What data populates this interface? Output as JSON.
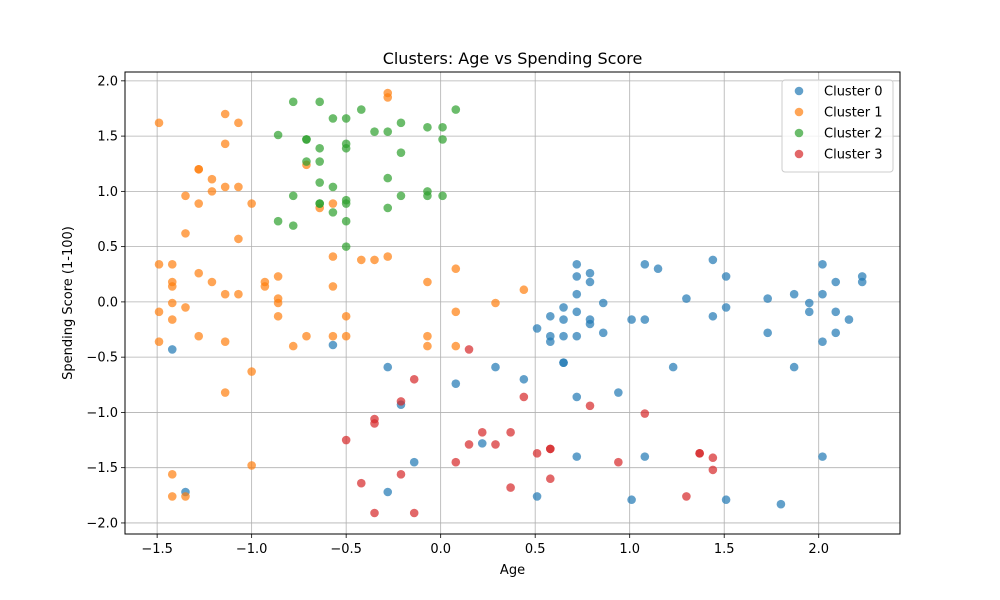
{
  "chart_data": {
    "type": "scatter",
    "title": "Clusters: Age vs Spending Score",
    "xlabel": "Age",
    "ylabel": "Spending Score (1-100)",
    "xlim": [
      -1.67,
      2.43
    ],
    "ylim": [
      -2.1,
      2.08
    ],
    "xticks": [
      -1.5,
      -1.0,
      -0.5,
      0.0,
      0.5,
      1.0,
      1.5,
      2.0
    ],
    "xtick_labels": [
      "−1.5",
      "−1.0",
      "−0.5",
      "0.0",
      "0.5",
      "1.0",
      "1.5",
      "2.0"
    ],
    "yticks": [
      -2.0,
      -1.5,
      -1.0,
      -0.5,
      0.0,
      0.5,
      1.0,
      1.5,
      2.0
    ],
    "ytick_labels": [
      "−2.0",
      "−1.5",
      "−1.0",
      "−0.5",
      "0.0",
      "0.5",
      "1.0",
      "1.5",
      "2.0"
    ],
    "grid": true,
    "legend_position": "top-right",
    "series": [
      {
        "name": "Cluster 0",
        "color": "#1f77b4",
        "points": [
          [
            -1.42,
            -0.43
          ],
          [
            -1.35,
            -1.72
          ],
          [
            -0.57,
            -0.39
          ],
          [
            -0.28,
            -0.59
          ],
          [
            -0.28,
            -1.72
          ],
          [
            -0.21,
            -0.93
          ],
          [
            -0.14,
            -1.45
          ],
          [
            0.08,
            -0.74
          ],
          [
            0.22,
            -1.28
          ],
          [
            0.29,
            -0.59
          ],
          [
            0.44,
            -0.7
          ],
          [
            0.51,
            -0.24
          ],
          [
            0.51,
            -1.76
          ],
          [
            0.58,
            -0.13
          ],
          [
            0.58,
            -0.31
          ],
          [
            0.58,
            -0.36
          ],
          [
            0.65,
            -0.05
          ],
          [
            0.65,
            -0.16
          ],
          [
            0.65,
            -0.31
          ],
          [
            0.65,
            -0.55
          ],
          [
            0.65,
            -0.55
          ],
          [
            0.72,
            0.34
          ],
          [
            0.72,
            0.23
          ],
          [
            0.72,
            0.07
          ],
          [
            0.72,
            -0.09
          ],
          [
            0.72,
            -0.31
          ],
          [
            0.72,
            -0.86
          ],
          [
            0.72,
            -1.4
          ],
          [
            0.79,
            0.26
          ],
          [
            0.79,
            0.18
          ],
          [
            0.79,
            -0.16
          ],
          [
            0.79,
            -0.2
          ],
          [
            0.86,
            -0.01
          ],
          [
            0.86,
            -0.28
          ],
          [
            0.94,
            -0.82
          ],
          [
            1.01,
            -0.16
          ],
          [
            1.01,
            -1.79
          ],
          [
            1.08,
            0.34
          ],
          [
            1.08,
            -0.16
          ],
          [
            1.08,
            -1.4
          ],
          [
            1.15,
            0.3
          ],
          [
            1.23,
            -0.59
          ],
          [
            1.3,
            0.03
          ],
          [
            1.44,
            0.38
          ],
          [
            1.44,
            -0.13
          ],
          [
            1.51,
            0.23
          ],
          [
            1.51,
            -0.05
          ],
          [
            1.51,
            -1.79
          ],
          [
            1.73,
            0.03
          ],
          [
            1.73,
            -0.28
          ],
          [
            1.8,
            -1.83
          ],
          [
            1.87,
            0.07
          ],
          [
            1.87,
            -0.59
          ],
          [
            1.95,
            -0.01
          ],
          [
            1.95,
            -0.09
          ],
          [
            2.02,
            0.34
          ],
          [
            2.02,
            0.07
          ],
          [
            2.02,
            -0.36
          ],
          [
            2.02,
            -1.4
          ],
          [
            2.09,
            0.18
          ],
          [
            2.09,
            -0.09
          ],
          [
            2.09,
            -0.28
          ],
          [
            2.16,
            -0.16
          ],
          [
            2.23,
            0.23
          ],
          [
            2.23,
            0.18
          ]
        ]
      },
      {
        "name": "Cluster 1",
        "color": "#ff7f0e",
        "points": [
          [
            -1.49,
            1.62
          ],
          [
            -1.49,
            0.34
          ],
          [
            -1.49,
            -0.09
          ],
          [
            -1.49,
            -0.36
          ],
          [
            -1.42,
            0.34
          ],
          [
            -1.42,
            0.18
          ],
          [
            -1.42,
            0.14
          ],
          [
            -1.42,
            -0.01
          ],
          [
            -1.42,
            -0.16
          ],
          [
            -1.42,
            -1.56
          ],
          [
            -1.42,
            -1.76
          ],
          [
            -1.35,
            0.96
          ],
          [
            -1.35,
            0.62
          ],
          [
            -1.35,
            -0.05
          ],
          [
            -1.35,
            -1.76
          ],
          [
            -1.28,
            1.2
          ],
          [
            -1.28,
            1.2
          ],
          [
            -1.28,
            0.89
          ],
          [
            -1.28,
            0.26
          ],
          [
            -1.28,
            -0.31
          ],
          [
            -1.21,
            1.11
          ],
          [
            -1.21,
            1.0
          ],
          [
            -1.21,
            0.18
          ],
          [
            -1.14,
            1.7
          ],
          [
            -1.14,
            1.43
          ],
          [
            -1.14,
            1.04
          ],
          [
            -1.14,
            0.07
          ],
          [
            -1.14,
            -0.36
          ],
          [
            -1.14,
            -0.82
          ],
          [
            -1.07,
            1.62
          ],
          [
            -1.07,
            1.04
          ],
          [
            -1.07,
            0.57
          ],
          [
            -1.07,
            0.07
          ],
          [
            -1.0,
            0.89
          ],
          [
            -1.0,
            -0.63
          ],
          [
            -1.0,
            -1.48
          ],
          [
            -0.93,
            0.18
          ],
          [
            -0.93,
            0.14
          ],
          [
            -0.86,
            0.23
          ],
          [
            -0.86,
            0.03
          ],
          [
            -0.86,
            -0.01
          ],
          [
            -0.86,
            -0.13
          ],
          [
            -0.78,
            -0.4
          ],
          [
            -0.71,
            1.24
          ],
          [
            -0.71,
            -0.31
          ],
          [
            -0.64,
            0.85
          ],
          [
            -0.57,
            0.89
          ],
          [
            -0.57,
            0.41
          ],
          [
            -0.57,
            0.14
          ],
          [
            -0.57,
            -0.31
          ],
          [
            -0.5,
            -0.13
          ],
          [
            -0.5,
            -0.31
          ],
          [
            -0.42,
            0.38
          ],
          [
            -0.35,
            0.38
          ],
          [
            -0.28,
            1.89
          ],
          [
            -0.28,
            1.85
          ],
          [
            -0.28,
            0.41
          ],
          [
            -0.07,
            0.18
          ],
          [
            -0.07,
            -0.31
          ],
          [
            -0.07,
            -0.4
          ],
          [
            0.08,
            0.3
          ],
          [
            0.08,
            -0.09
          ],
          [
            0.08,
            -0.4
          ],
          [
            0.29,
            -0.01
          ],
          [
            0.44,
            0.11
          ]
        ]
      },
      {
        "name": "Cluster 2",
        "color": "#2ca02c",
        "points": [
          [
            -0.86,
            1.51
          ],
          [
            -0.86,
            0.73
          ],
          [
            -0.78,
            1.81
          ],
          [
            -0.78,
            0.96
          ],
          [
            -0.78,
            0.69
          ],
          [
            -0.71,
            1.47
          ],
          [
            -0.71,
            1.47
          ],
          [
            -0.71,
            1.27
          ],
          [
            -0.64,
            1.81
          ],
          [
            -0.64,
            1.39
          ],
          [
            -0.64,
            1.27
          ],
          [
            -0.64,
            1.08
          ],
          [
            -0.64,
            0.89
          ],
          [
            -0.64,
            0.89
          ],
          [
            -0.57,
            1.66
          ],
          [
            -0.57,
            1.04
          ],
          [
            -0.57,
            0.81
          ],
          [
            -0.5,
            1.66
          ],
          [
            -0.5,
            1.43
          ],
          [
            -0.5,
            1.39
          ],
          [
            -0.5,
            0.92
          ],
          [
            -0.5,
            0.89
          ],
          [
            -0.5,
            0.73
          ],
          [
            -0.5,
            0.5
          ],
          [
            -0.42,
            1.74
          ],
          [
            -0.35,
            1.54
          ],
          [
            -0.28,
            1.54
          ],
          [
            -0.28,
            1.12
          ],
          [
            -0.28,
            0.85
          ],
          [
            -0.21,
            1.62
          ],
          [
            -0.21,
            1.35
          ],
          [
            -0.21,
            0.96
          ],
          [
            -0.07,
            1.58
          ],
          [
            -0.07,
            1.0
          ],
          [
            -0.07,
            0.96
          ],
          [
            0.01,
            1.58
          ],
          [
            0.01,
            1.47
          ],
          [
            0.01,
            0.96
          ],
          [
            0.08,
            1.74
          ]
        ]
      },
      {
        "name": "Cluster 3",
        "color": "#d62728",
        "points": [
          [
            -0.5,
            -1.25
          ],
          [
            -0.42,
            -1.64
          ],
          [
            -0.35,
            -1.06
          ],
          [
            -0.35,
            -1.1
          ],
          [
            -0.35,
            -1.91
          ],
          [
            -0.21,
            -0.9
          ],
          [
            -0.21,
            -1.56
          ],
          [
            -0.14,
            -0.7
          ],
          [
            -0.14,
            -1.91
          ],
          [
            0.08,
            -1.45
          ],
          [
            0.15,
            -0.43
          ],
          [
            0.15,
            -1.29
          ],
          [
            0.22,
            -1.18
          ],
          [
            0.29,
            -1.29
          ],
          [
            0.37,
            -1.18
          ],
          [
            0.37,
            -1.68
          ],
          [
            0.44,
            -0.86
          ],
          [
            0.51,
            -1.37
          ],
          [
            0.58,
            -1.33
          ],
          [
            0.58,
            -1.33
          ],
          [
            0.58,
            -1.6
          ],
          [
            0.79,
            -0.94
          ],
          [
            0.94,
            -1.45
          ],
          [
            1.08,
            -1.01
          ],
          [
            1.3,
            -1.76
          ],
          [
            1.37,
            -1.37
          ],
          [
            1.37,
            -1.37
          ],
          [
            1.44,
            -1.41
          ],
          [
            1.44,
            -1.52
          ]
        ]
      }
    ]
  }
}
